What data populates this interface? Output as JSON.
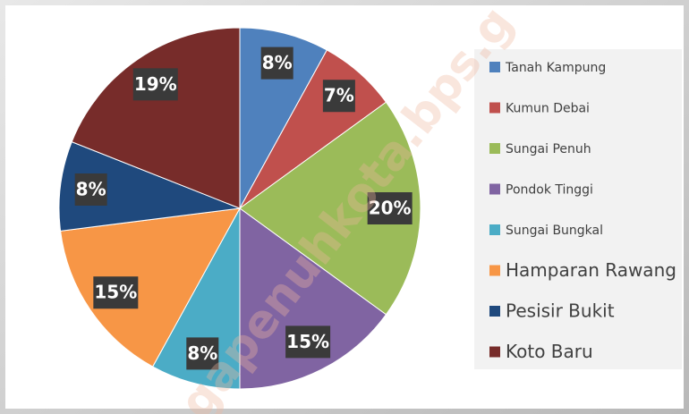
{
  "watermark": "gapenuhkota.bps.g",
  "chart_data": {
    "type": "pie",
    "categories": [
      "Tanah Kampung",
      "Kumun Debai",
      "Sungai Penuh",
      "Pondok Tinggi",
      "Sungai Bungkal",
      "Hamparan Rawang",
      "Pesisir Bukit",
      "Koto Baru"
    ],
    "values": [
      8,
      7,
      20,
      15,
      8,
      15,
      8,
      19
    ],
    "value_labels": [
      "8%",
      "7%",
      "20%",
      "15%",
      "8%",
      "15%",
      "8%",
      "19%"
    ],
    "colors": [
      "#4f81bd",
      "#c0504d",
      "#9bbb59",
      "#8064a2",
      "#4bacc6",
      "#f79646",
      "#1f497d",
      "#772c2a"
    ],
    "legend": "right"
  }
}
